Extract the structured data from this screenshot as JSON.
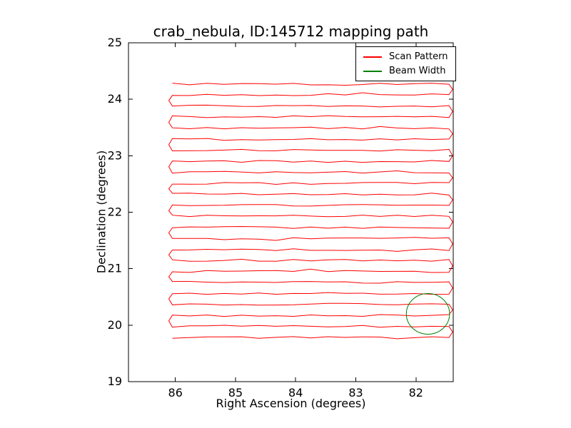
{
  "figure": {
    "title": "crab_nebula, ID:145712 mapping path",
    "xlabel": "Right Ascension (degrees)",
    "ylabel": "Declination (degrees)"
  },
  "legend": {
    "position": "upper right",
    "items": [
      {
        "label": "Scan Pattern",
        "color": "#ff0000"
      },
      {
        "label": "Beam Width",
        "color": "#008000"
      }
    ]
  },
  "chart_data": {
    "type": "line",
    "title": "crab_nebula, ID:145712 mapping path",
    "xlabel": "Right Ascension (degrees)",
    "ylabel": "Declination (degrees)",
    "grid": false,
    "legend_position": "upper right",
    "x_axis": {
      "ticks": [
        86,
        85,
        84,
        83,
        82
      ],
      "range": [
        86.78,
        81.38
      ],
      "inverted": true
    },
    "y_axis": {
      "ticks": [
        19,
        20,
        21,
        22,
        23,
        24,
        25
      ],
      "range": [
        19,
        25
      ]
    },
    "series": [
      {
        "name": "Scan Pattern",
        "color": "#ff0000",
        "kind": "boustrophedon_scan",
        "ra_start": 86.05,
        "ra_end": 81.45,
        "turn_overshoot": 0.06,
        "jitter_deg": 0.018,
        "dec_rows": [
          19.78,
          19.98,
          20.17,
          20.37,
          20.56,
          20.76,
          20.95,
          21.15,
          21.34,
          21.54,
          21.73,
          21.93,
          22.12,
          22.32,
          22.51,
          22.71,
          22.9,
          23.1,
          23.29,
          23.49,
          23.69,
          23.88,
          24.08,
          24.27
        ]
      },
      {
        "name": "Beam Width",
        "color": "#008000",
        "kind": "circle",
        "center": [
          81.8,
          20.2
        ],
        "radius_deg": 0.36
      }
    ]
  }
}
